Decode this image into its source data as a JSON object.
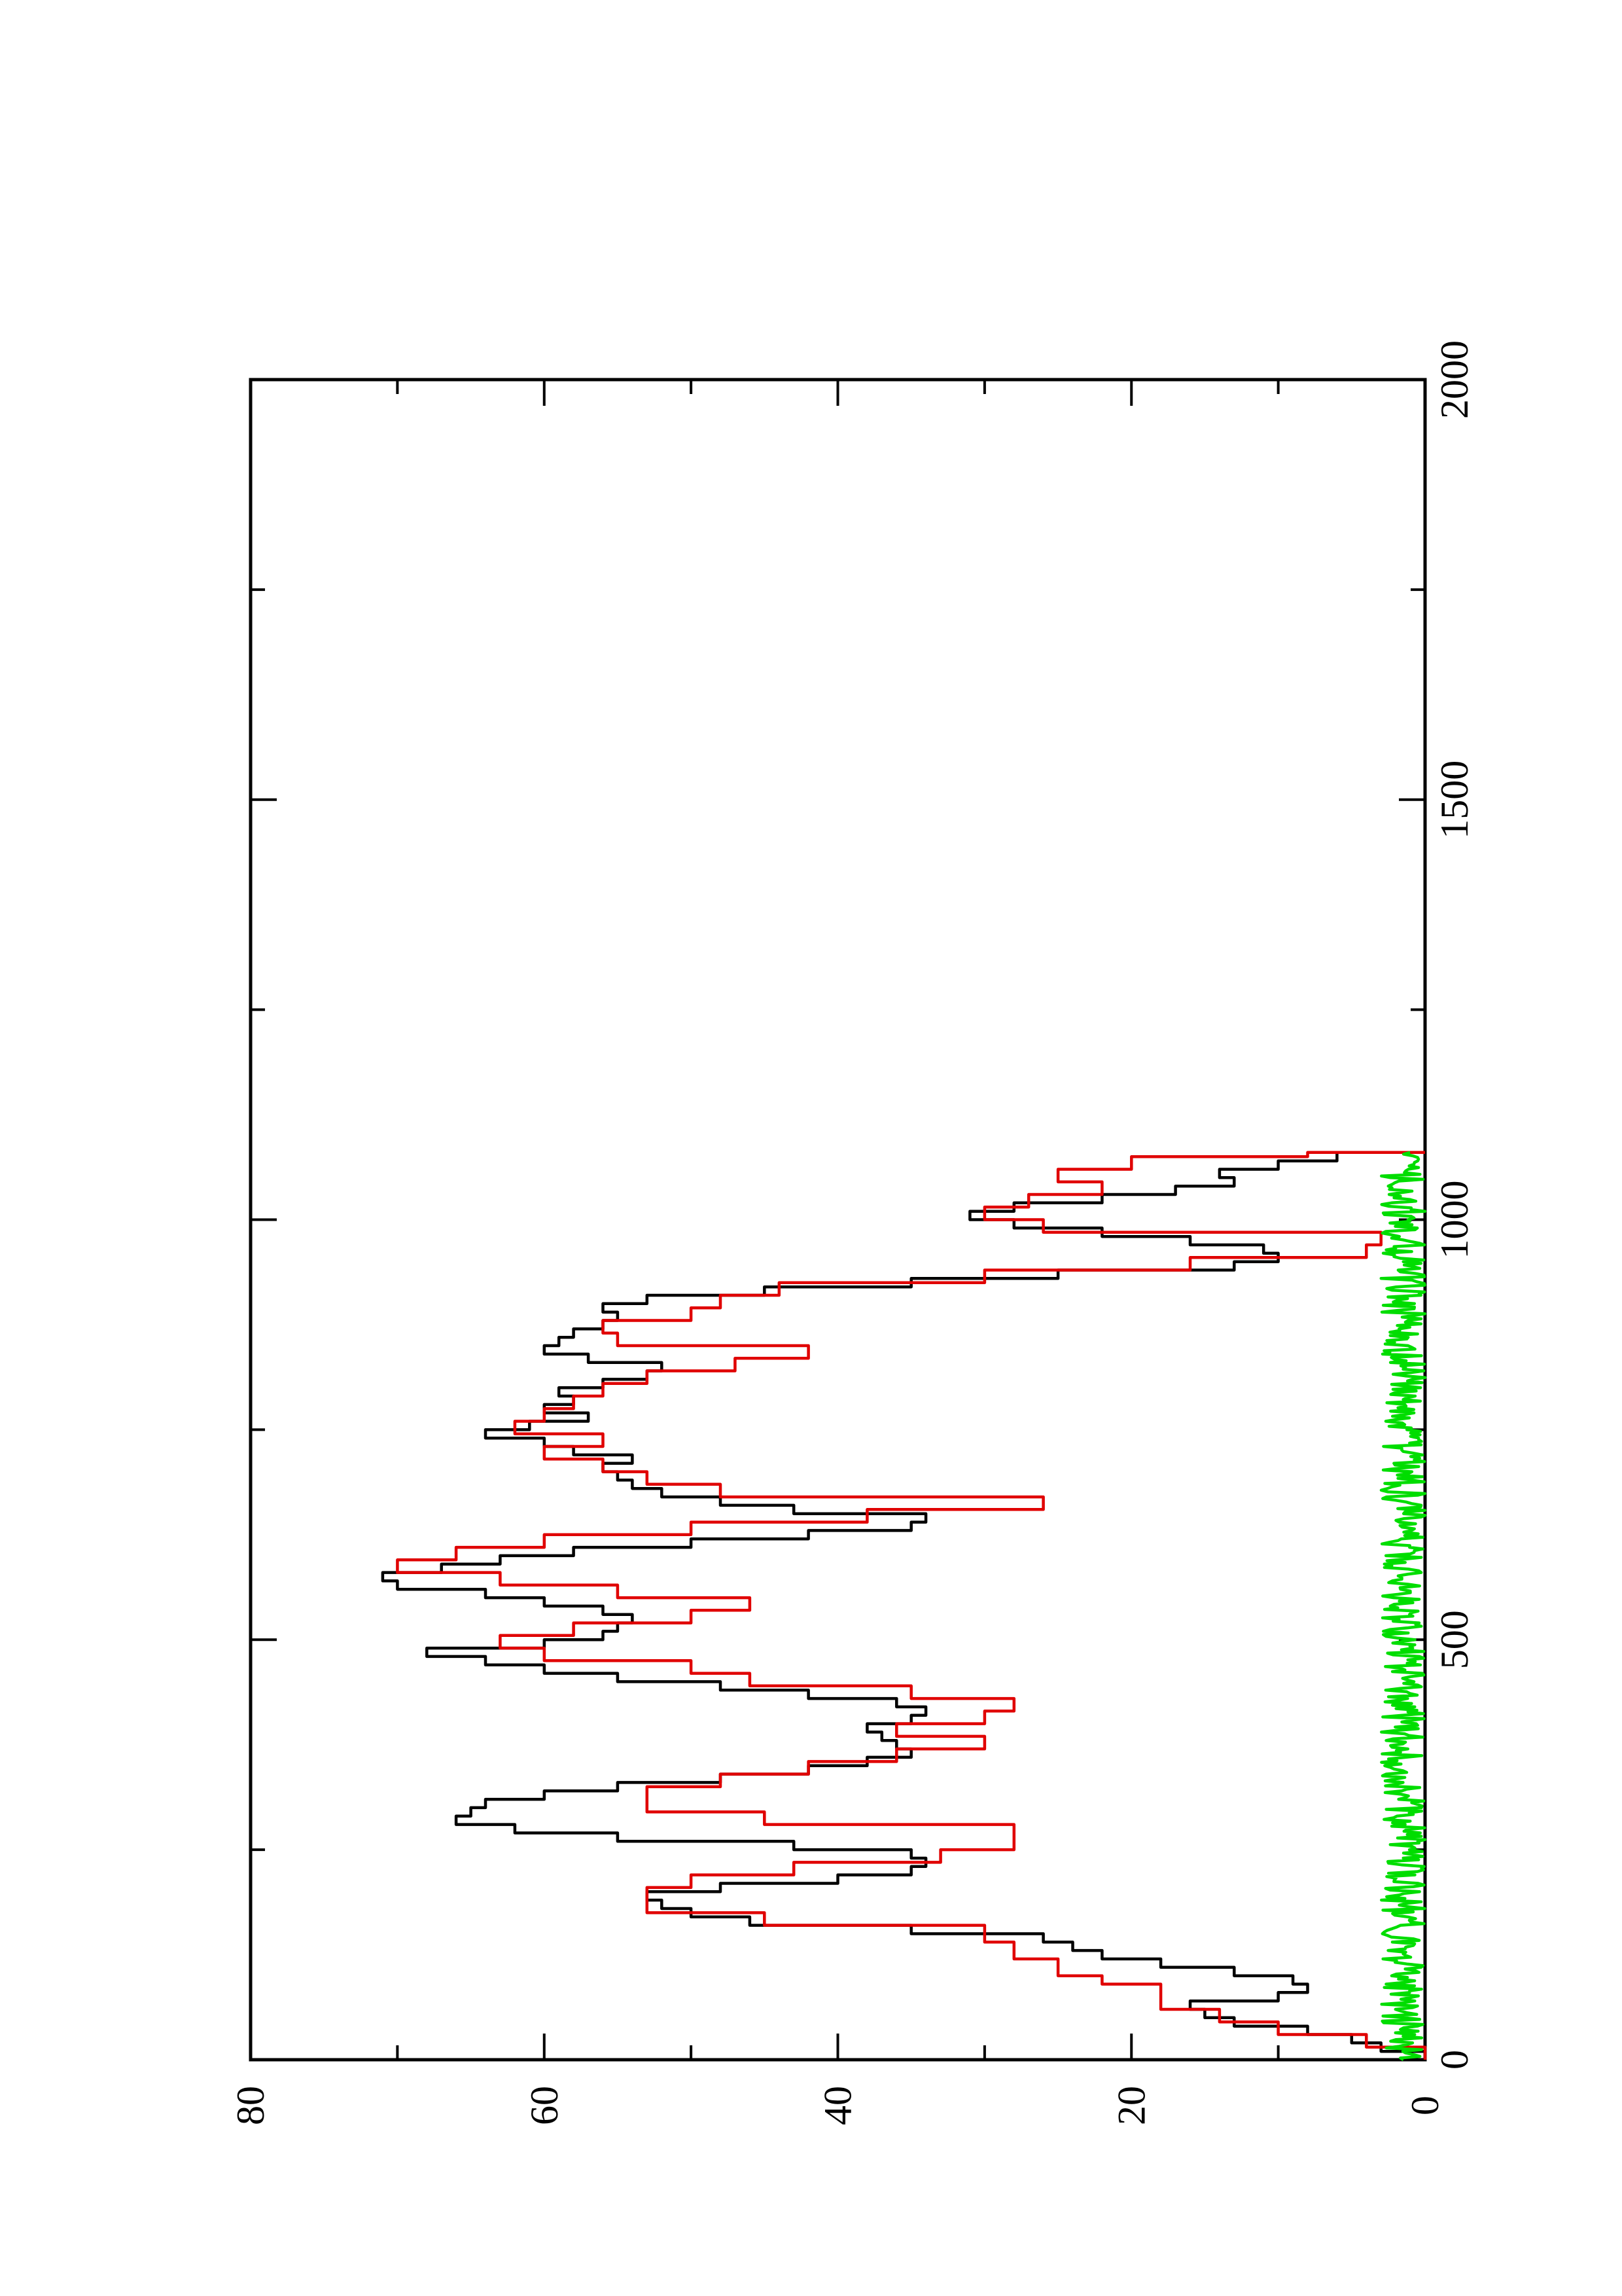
{
  "chart_data": {
    "type": "line",
    "orientation": "rotated-90-ccw",
    "title": "",
    "xlabel": "",
    "ylabel": "",
    "xlim": [
      0,
      2000
    ],
    "ylim": [
      0,
      80
    ],
    "x_ticks": [
      0,
      500,
      1000,
      1500,
      2000
    ],
    "y_ticks": [
      0,
      20,
      40,
      60,
      80
    ],
    "x_minor_ticks": [
      250,
      750,
      1250,
      1750
    ],
    "y_minor_ticks": [
      10,
      30,
      50,
      70
    ],
    "grid": false,
    "legend": "none",
    "series": [
      {
        "color": "#000000",
        "x": [
          0,
          10,
          20,
          30,
          40,
          50,
          60,
          70,
          80,
          90,
          100,
          110,
          120,
          130,
          140,
          150,
          160,
          170,
          180,
          190,
          200,
          210,
          220,
          230,
          240,
          250,
          260,
          270,
          280,
          290,
          300,
          310,
          320,
          330,
          340,
          350,
          360,
          370,
          380,
          390,
          400,
          410,
          420,
          430,
          440,
          450,
          460,
          470,
          480,
          490,
          500,
          510,
          520,
          530,
          540,
          550,
          560,
          570,
          580,
          590,
          600,
          610,
          620,
          630,
          640,
          650,
          660,
          670,
          680,
          690,
          700,
          710,
          720,
          730,
          740,
          750,
          760,
          770,
          780,
          790,
          800,
          810,
          820,
          830,
          840,
          850,
          860,
          870,
          880,
          890,
          900,
          910,
          920,
          930,
          940,
          950,
          960,
          970,
          980,
          990,
          1000,
          1010,
          1020,
          1030,
          1040,
          1050,
          1060,
          1070,
          1080
        ],
        "values": [
          0,
          3,
          5,
          8,
          13,
          15,
          16,
          10,
          8,
          9,
          13,
          18,
          22,
          24,
          26,
          35,
          46,
          50,
          52,
          53,
          48,
          40,
          35,
          34,
          35,
          43,
          55,
          62,
          66,
          65,
          64,
          60,
          55,
          48,
          42,
          38,
          35,
          36,
          37,
          38,
          35,
          34,
          36,
          42,
          48,
          55,
          60,
          64,
          68,
          60,
          56,
          55,
          54,
          56,
          60,
          64,
          70,
          71,
          67,
          63,
          58,
          50,
          42,
          35,
          34,
          43,
          48,
          52,
          54,
          55,
          56,
          54,
          58,
          60,
          64,
          61,
          57,
          60,
          58,
          59,
          56,
          53,
          52,
          57,
          60,
          59,
          58,
          56,
          55,
          56,
          53,
          45,
          35,
          25,
          13,
          10,
          11,
          16,
          22,
          28,
          31,
          28,
          22,
          17,
          13,
          14,
          10,
          6,
          0
        ]
      },
      {
        "color": "#e00000",
        "x": [
          0,
          15,
          30,
          45,
          60,
          75,
          90,
          100,
          120,
          140,
          160,
          175,
          190,
          205,
          220,
          235,
          250,
          265,
          280,
          295,
          310,
          325,
          340,
          355,
          370,
          385,
          400,
          415,
          430,
          445,
          460,
          475,
          490,
          505,
          520,
          535,
          550,
          565,
          580,
          595,
          610,
          625,
          640,
          655,
          670,
          685,
          700,
          715,
          730,
          745,
          760,
          775,
          790,
          805,
          820,
          835,
          850,
          865,
          880,
          895,
          910,
          925,
          940,
          955,
          970,
          985,
          1000,
          1015,
          1030,
          1045,
          1060,
          1075,
          1080
        ],
        "values": [
          0,
          4,
          10,
          14,
          18,
          18,
          22,
          25,
          28,
          30,
          45,
          53,
          53,
          50,
          43,
          33,
          28,
          28,
          45,
          53,
          53,
          48,
          42,
          36,
          30,
          36,
          30,
          28,
          35,
          46,
          50,
          60,
          63,
          58,
          50,
          46,
          55,
          63,
          70,
          66,
          60,
          50,
          38,
          26,
          48,
          53,
          56,
          60,
          56,
          62,
          60,
          58,
          56,
          53,
          47,
          42,
          55,
          56,
          50,
          48,
          44,
          30,
          16,
          4,
          3,
          26,
          30,
          27,
          22,
          25,
          20,
          8,
          0
        ]
      },
      {
        "color": "#00dd00",
        "noise_amplitude": 3,
        "x_range": [
          0,
          1080
        ]
      }
    ]
  }
}
